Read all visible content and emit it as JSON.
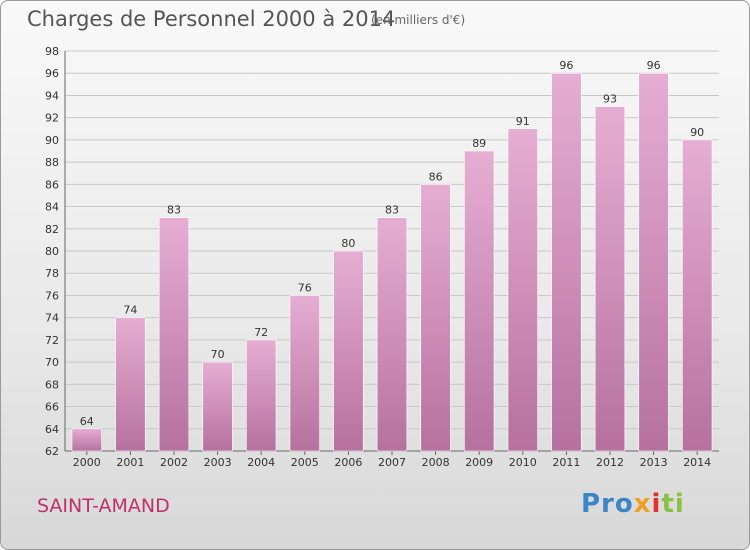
{
  "header": {
    "title": "Charges de Personnel 2000 à 2014",
    "subtitle": "(en milliers d'€)"
  },
  "footer": {
    "commune": "SAINT-AMAND",
    "logo": [
      "Pro",
      "x",
      "i",
      "ti"
    ]
  },
  "colors": {
    "bar_top": "#e6aed3",
    "bar_bottom": "#b6719f",
    "grid": "#c8c8c8",
    "commune_text": "#c0306a"
  },
  "chart_data": {
    "type": "bar",
    "title": "Charges de Personnel 2000 à 2014",
    "subtitle": "(en milliers d'€)",
    "categories": [
      "2000",
      "2001",
      "2002",
      "2003",
      "2004",
      "2005",
      "2006",
      "2007",
      "2008",
      "2009",
      "2010",
      "2011",
      "2012",
      "2013",
      "2014"
    ],
    "values": [
      64,
      74,
      83,
      70,
      72,
      76,
      80,
      83,
      86,
      89,
      91,
      96,
      93,
      96,
      90
    ],
    "ylim": [
      62,
      98
    ],
    "yticks": [
      62,
      64,
      66,
      68,
      70,
      72,
      74,
      76,
      78,
      80,
      82,
      84,
      86,
      88,
      90,
      92,
      94,
      96,
      98
    ],
    "grid": true,
    "data_labels": true
  }
}
